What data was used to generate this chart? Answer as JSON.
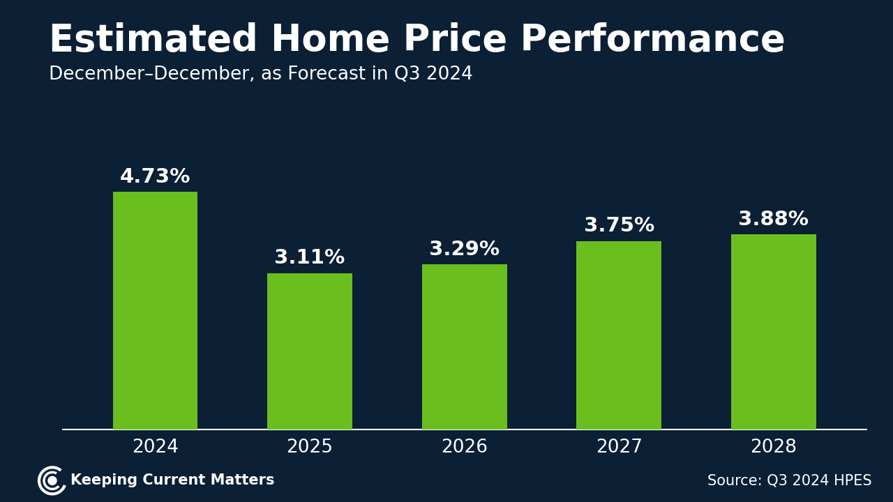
{
  "title": "Estimated Home Price Performance",
  "subtitle": "December–December, as Forecast in Q3 2024",
  "categories": [
    "2024",
    "2025",
    "2026",
    "2027",
    "2028"
  ],
  "values": [
    4.73,
    3.11,
    3.29,
    3.75,
    3.88
  ],
  "labels": [
    "4.73%",
    "3.11%",
    "3.29%",
    "3.75%",
    "3.88%"
  ],
  "bar_color": "#6abf1e",
  "background_color": "#0b1f35",
  "footer_color": "#1278c8",
  "title_color": "#ffffff",
  "subtitle_color": "#ffffff",
  "label_color": "#ffffff",
  "tick_color": "#ffffff",
  "axis_line_color": "#ffffff",
  "ylim": [
    0,
    6
  ],
  "title_fontsize": 38,
  "subtitle_fontsize": 19,
  "label_fontsize": 21,
  "tick_fontsize": 19,
  "footer_text_left": "Keeping Current Matters",
  "footer_text_right": "Source: Q3 2024 HPES",
  "footer_fontsize": 15
}
